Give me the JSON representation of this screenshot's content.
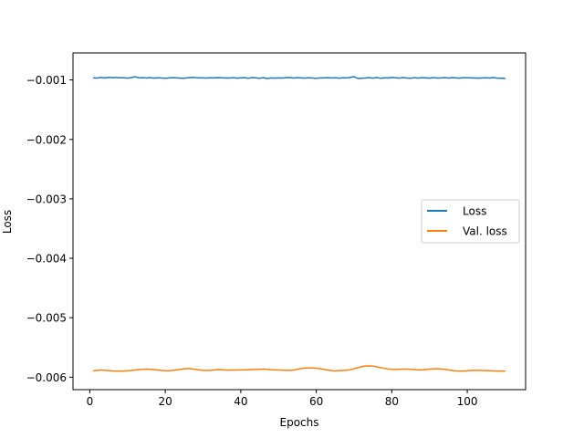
{
  "chart_data": {
    "type": "line",
    "title": "",
    "xlabel": "Epochs",
    "ylabel": "Loss",
    "xlim": [
      -4.45,
      115.45
    ],
    "ylim": [
      -0.00621,
      -0.000545
    ],
    "xticks": [
      0,
      20,
      40,
      60,
      80,
      100
    ],
    "xtick_labels": [
      "0",
      "20",
      "40",
      "60",
      "80",
      "100"
    ],
    "yticks": [
      -0.001,
      -0.002,
      -0.003,
      -0.004,
      -0.005,
      -0.006
    ],
    "ytick_labels": [
      "−0.001",
      "−0.002",
      "−0.003",
      "−0.004",
      "−0.005",
      "−0.006"
    ],
    "grid": false,
    "legend_position": "center-right",
    "x": [
      1,
      2,
      3,
      4,
      5,
      6,
      7,
      8,
      9,
      10,
      11,
      12,
      13,
      14,
      15,
      16,
      17,
      18,
      19,
      20,
      21,
      22,
      23,
      24,
      25,
      26,
      27,
      28,
      29,
      30,
      31,
      32,
      33,
      34,
      35,
      36,
      37,
      38,
      39,
      40,
      41,
      42,
      43,
      44,
      45,
      46,
      47,
      48,
      49,
      50,
      51,
      52,
      53,
      54,
      55,
      56,
      57,
      58,
      59,
      60,
      61,
      62,
      63,
      64,
      65,
      66,
      67,
      68,
      69,
      70,
      71,
      72,
      73,
      74,
      75,
      76,
      77,
      78,
      79,
      80,
      81,
      82,
      83,
      84,
      85,
      86,
      87,
      88,
      89,
      90,
      91,
      92,
      93,
      94,
      95,
      96,
      97,
      98,
      99,
      100,
      101,
      102,
      103,
      104,
      105,
      106,
      107,
      108,
      109,
      110
    ],
    "series": [
      {
        "name": "Loss",
        "color": "#1f77b4",
        "values": [
          -0.000965,
          -0.000968,
          -0.000958,
          -0.000967,
          -0.000955,
          -0.000962,
          -0.00096,
          -0.000963,
          -0.000964,
          -0.00097,
          -0.00096,
          -0.000945,
          -0.000966,
          -0.000962,
          -0.000968,
          -0.000961,
          -0.00097,
          -0.000964,
          -0.000968,
          -0.000972,
          -0.000966,
          -0.000962,
          -0.000966,
          -0.00097,
          -0.000971,
          -0.000963,
          -0.000955,
          -0.000962,
          -0.000965,
          -0.000966,
          -0.000968,
          -0.000964,
          -0.000966,
          -0.000962,
          -0.000963,
          -0.000967,
          -0.000968,
          -0.000962,
          -0.00097,
          -0.000965,
          -0.000961,
          -0.000972,
          -0.00096,
          -0.000966,
          -0.000972,
          -0.000962,
          -0.000978,
          -0.000965,
          -0.00097,
          -0.000966,
          -0.000968,
          -0.000962,
          -0.00096,
          -0.000968,
          -0.000962,
          -0.000966,
          -0.00097,
          -0.000964,
          -0.000968,
          -0.000974,
          -0.000966,
          -0.000965,
          -0.000962,
          -0.000968,
          -0.000964,
          -0.00097,
          -0.000964,
          -0.000966,
          -0.000958,
          -0.000944,
          -0.000975,
          -0.000972,
          -0.000968,
          -0.000962,
          -0.00097,
          -0.000958,
          -0.000972,
          -0.000964,
          -0.000968,
          -0.000958,
          -0.000964,
          -0.00097,
          -0.00096,
          -0.000968,
          -0.000972,
          -0.000962,
          -0.00097,
          -0.000962,
          -0.000966,
          -0.00097,
          -0.000962,
          -0.000968,
          -0.000966,
          -0.000962,
          -0.000968,
          -0.000962,
          -0.000966,
          -0.00097,
          -0.000962,
          -0.000964,
          -0.000966,
          -0.000968,
          -0.00097,
          -0.000966,
          -0.000964,
          -0.000968,
          -0.00096,
          -0.00097,
          -0.000972,
          -0.000975
        ]
      },
      {
        "name": "Val. loss",
        "color": "#ff7f0e",
        "values": [
          -0.005895,
          -0.005885,
          -0.00588,
          -0.005885,
          -0.00589,
          -0.005895,
          -0.005898,
          -0.0059,
          -0.005897,
          -0.005893,
          -0.005888,
          -0.00588,
          -0.005872,
          -0.005868,
          -0.005865,
          -0.005868,
          -0.005872,
          -0.00588,
          -0.005888,
          -0.005893,
          -0.005892,
          -0.005886,
          -0.005878,
          -0.005868,
          -0.00586,
          -0.005855,
          -0.00586,
          -0.005868,
          -0.005878,
          -0.005885,
          -0.005888,
          -0.005885,
          -0.005878,
          -0.005872,
          -0.005875,
          -0.00588,
          -0.005882,
          -0.00588,
          -0.00588,
          -0.005878,
          -0.005878,
          -0.005875,
          -0.005872,
          -0.00587,
          -0.005868,
          -0.005865,
          -0.00587,
          -0.005875,
          -0.005878,
          -0.00588,
          -0.005882,
          -0.005885,
          -0.005885,
          -0.00588,
          -0.005868,
          -0.005855,
          -0.005848,
          -0.005845,
          -0.005845,
          -0.00585,
          -0.005858,
          -0.005868,
          -0.00588,
          -0.00589,
          -0.005895,
          -0.005892,
          -0.005888,
          -0.005884,
          -0.005875,
          -0.00586,
          -0.00584,
          -0.005822,
          -0.005812,
          -0.00581,
          -0.005815,
          -0.005825,
          -0.00584,
          -0.005852,
          -0.005862,
          -0.005868,
          -0.00587,
          -0.005868,
          -0.005865,
          -0.005865,
          -0.005868,
          -0.005872,
          -0.005878,
          -0.005878,
          -0.005872,
          -0.005865,
          -0.00586,
          -0.005858,
          -0.005862,
          -0.005868,
          -0.005878,
          -0.005888,
          -0.005895,
          -0.005898,
          -0.005897,
          -0.005893,
          -0.005888,
          -0.005885,
          -0.005885,
          -0.005888,
          -0.00589,
          -0.005892,
          -0.005895,
          -0.005897,
          -0.005898,
          -0.005898
        ]
      }
    ]
  }
}
